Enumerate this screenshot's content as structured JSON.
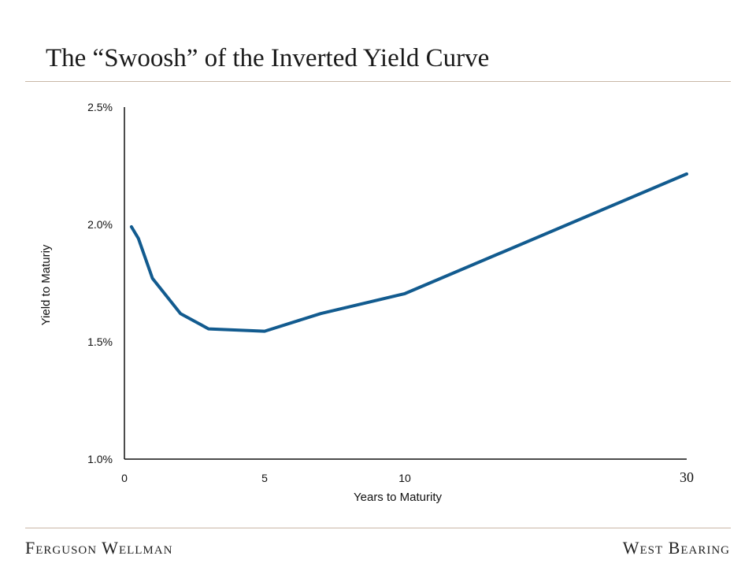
{
  "title": "The “Swoosh” of the Inverted Yield Curve",
  "footer": {
    "left": "Ferguson Wellman",
    "right": "West Bearing"
  },
  "colors": {
    "line": "#125b8f",
    "rule": "#c9b7a7",
    "axis": "#111111"
  },
  "chart_data": {
    "type": "line",
    "xlabel": "Years to Maturity",
    "ylabel": "Yield to Maturiy",
    "ylim": [
      1.0,
      2.5
    ],
    "yticks": [
      "1.0%",
      "1.5%",
      "2.0%",
      "2.5%"
    ],
    "xticks": [
      "0",
      "5",
      "10",
      "30"
    ],
    "x_scale_note": "axis segments: 0-10 years linear, 10-30 years compressed",
    "series": [
      {
        "x": [
          0.25,
          0.5,
          1,
          2,
          3,
          5,
          7,
          10,
          30
        ],
        "values": [
          1.99,
          1.94,
          1.77,
          1.62,
          1.555,
          1.545,
          1.62,
          1.705,
          2.215
        ]
      }
    ],
    "grid": false,
    "legend": "none"
  }
}
